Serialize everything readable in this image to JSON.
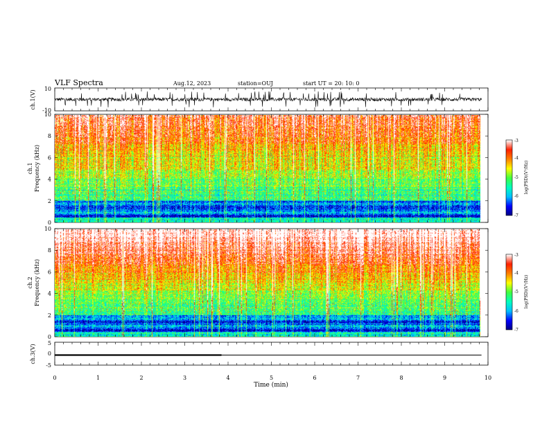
{
  "header": {
    "title": "VLF Spectra",
    "date": "Aug.12, 2023",
    "station": "station=OUJ",
    "start": "start  UT =   20: 10: 0"
  },
  "chart_data": [
    {
      "type": "line",
      "panel": "ch1-waveform",
      "ylabel": "ch.1(V)",
      "ylim": [
        -10,
        10
      ],
      "y_ticks": [
        "10",
        "-10"
      ],
      "baseline_value": 0,
      "x_range": [
        0,
        10
      ],
      "description_values": {
        "typical_amplitude": 1.5,
        "spike_amplitude": 7
      }
    },
    {
      "type": "heatmap",
      "panel": "ch1-spectrogram",
      "ylabel_line1": "ch.1",
      "ylabel_line2": "Frequency  (kHz)",
      "ylim": [
        0,
        10
      ],
      "y_ticks": [
        "0",
        "2",
        "4",
        "6",
        "8",
        "10"
      ],
      "x_range": [
        0,
        9.85
      ],
      "colorbar": {
        "label": "log(PSD)(V²/Hz)",
        "range": [
          -7,
          -3
        ],
        "ticks": [
          "-3",
          "-4",
          "-5",
          "-6",
          "-7"
        ]
      }
    },
    {
      "type": "heatmap",
      "panel": "ch2-spectrogram",
      "ylabel_line1": "ch.2",
      "ylabel_line2": "Frequency  (kHz)",
      "ylim": [
        0,
        10
      ],
      "y_ticks": [
        "0",
        "2",
        "4",
        "6",
        "8",
        "10"
      ],
      "x_range": [
        0,
        9.85
      ],
      "colorbar": {
        "label": "log(PSD)(V²/Hz)",
        "range": [
          -7,
          -3
        ],
        "ticks": [
          "-3",
          "-4",
          "-5",
          "-6",
          "-7"
        ]
      }
    },
    {
      "type": "line",
      "panel": "ch3-level",
      "ylabel": "ch.3(V)",
      "ylim": [
        -5,
        5
      ],
      "y_ticks": [
        "5",
        "0",
        "-5"
      ],
      "x_range": [
        0,
        9.85
      ],
      "x": [
        0,
        3.85,
        3.85,
        9.85
      ],
      "y": [
        -0.6,
        -0.6,
        -0.6,
        -0.6
      ],
      "thick_segment_end": 3.85
    }
  ],
  "x_axis": {
    "label": "Time  (min)",
    "ticks": [
      "0",
      "1",
      "2",
      "3",
      "4",
      "5",
      "6",
      "7",
      "8",
      "9",
      "10"
    ],
    "range": [
      0,
      10
    ]
  },
  "colors": {
    "ink": "#000000",
    "colormap": [
      "#00007f",
      "#0000ff",
      "#00bfff",
      "#00ffc0",
      "#40ff40",
      "#ffff00",
      "#ff8000",
      "#ff2000",
      "#ffffff"
    ]
  }
}
